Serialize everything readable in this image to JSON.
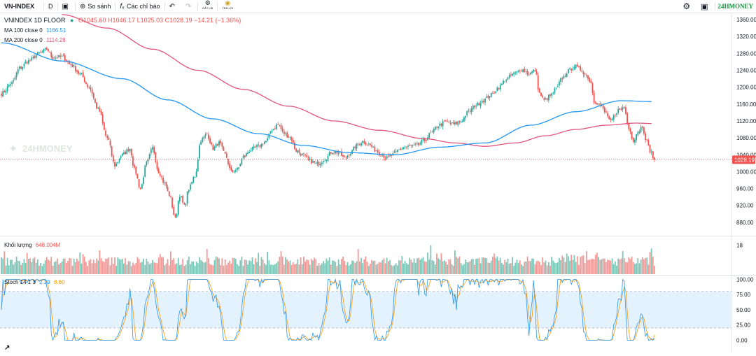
{
  "toolbar": {
    "symbol": "VN-INDEX",
    "interval": "D",
    "compare_label": "So sánh",
    "indicators_label": "Các chỉ báo",
    "set_alert_label": "ĐẶT LÃI",
    "trade_label": "TRẢ LỜI",
    "brand": "24HMONEY"
  },
  "watermark": "24HMONEY",
  "main_legend": {
    "title": "VNINDEX  1D  FLOOR",
    "ohlc": "O1045.60  H1046.17  L1025.03  C1028.19  −14.21 (−1.36%)",
    "ma100_label": "MA 100 close 0",
    "ma100_value": "1166.51",
    "ma200_label": "MA 200 close 0",
    "ma200_value": "1114.28"
  },
  "volume_legend": {
    "label": "Khối lượng",
    "value": "648.004M"
  },
  "stoch_legend": {
    "label": "Stoch 14 1 3",
    "k": "2.39",
    "d": "8.60"
  },
  "colors": {
    "up": "#26a69a",
    "down": "#ef5350",
    "ma100": "#2196f3",
    "ma200": "#e0557a",
    "stoch_k": "#2196f3",
    "stoch_d": "#ff9800",
    "band": "#e3f2fd",
    "last_price_bg": "#ef5350"
  },
  "chart_data": [
    {
      "type": "candlestick",
      "title": "VNINDEX 1D FLOOR",
      "ylim": [
        850,
        1375
      ],
      "y_ticks": [
        1360,
        1320,
        1280,
        1240,
        1200,
        1160,
        1120,
        1080,
        1040,
        1000,
        960,
        920,
        880
      ],
      "last_price": 1028.19,
      "anchors": [
        [
          0,
          1185
        ],
        [
          7,
          1210
        ],
        [
          12,
          1245
        ],
        [
          18,
          1262
        ],
        [
          25,
          1280
        ],
        [
          30,
          1290
        ],
        [
          34,
          1270
        ],
        [
          40,
          1272
        ],
        [
          46,
          1253
        ],
        [
          52,
          1232
        ],
        [
          58,
          1200
        ],
        [
          64,
          1148
        ],
        [
          70,
          1080
        ],
        [
          75,
          1015
        ],
        [
          80,
          1040
        ],
        [
          85,
          1055
        ],
        [
          88,
          1005
        ],
        [
          92,
          960
        ],
        [
          96,
          1020
        ],
        [
          100,
          1055
        ],
        [
          104,
          1000
        ],
        [
          108,
          972
        ],
        [
          111,
          945
        ],
        [
          115,
          890
        ],
        [
          118,
          945
        ],
        [
          121,
          918
        ],
        [
          124,
          960
        ],
        [
          128,
          990
        ],
        [
          132,
          1075
        ],
        [
          136,
          1088
        ],
        [
          140,
          1055
        ],
        [
          144,
          1068
        ],
        [
          148,
          1040
        ],
        [
          152,
          1000
        ],
        [
          156,
          1005
        ],
        [
          160,
          1035
        ],
        [
          165,
          1052
        ],
        [
          170,
          1060
        ],
        [
          175,
          1072
        ],
        [
          179,
          1100
        ],
        [
          183,
          1112
        ],
        [
          187,
          1090
        ],
        [
          191,
          1082
        ],
        [
          195,
          1050
        ],
        [
          199,
          1040
        ],
        [
          204,
          1025
        ],
        [
          209,
          1018
        ],
        [
          214,
          1030
        ],
        [
          219,
          1048
        ],
        [
          223,
          1045
        ],
        [
          227,
          1032
        ],
        [
          231,
          1045
        ],
        [
          235,
          1062
        ],
        [
          239,
          1072
        ],
        [
          243,
          1065
        ],
        [
          247,
          1052
        ],
        [
          251,
          1042
        ],
        [
          255,
          1032
        ],
        [
          259,
          1040
        ],
        [
          263,
          1052
        ],
        [
          267,
          1058
        ],
        [
          271,
          1060
        ],
        [
          275,
          1062
        ],
        [
          280,
          1075
        ],
        [
          284,
          1090
        ],
        [
          289,
          1110
        ],
        [
          294,
          1118
        ],
        [
          299,
          1112
        ],
        [
          304,
          1120
        ],
        [
          309,
          1142
        ],
        [
          314,
          1158
        ],
        [
          319,
          1170
        ],
        [
          324,
          1182
        ],
        [
          329,
          1200
        ],
        [
          334,
          1220
        ],
        [
          339,
          1232
        ],
        [
          344,
          1242
        ],
        [
          349,
          1232
        ],
        [
          353,
          1240
        ],
        [
          356,
          1185
        ],
        [
          359,
          1168
        ],
        [
          363,
          1180
        ],
        [
          367,
          1196
        ],
        [
          371,
          1222
        ],
        [
          375,
          1238
        ],
        [
          379,
          1250
        ],
        [
          383,
          1242
        ],
        [
          387,
          1228
        ],
        [
          390,
          1210
        ],
        [
          392,
          1168
        ],
        [
          396,
          1158
        ],
        [
          400,
          1138
        ],
        [
          403,
          1118
        ],
        [
          406,
          1132
        ],
        [
          409,
          1150
        ],
        [
          412,
          1150
        ],
        [
          415,
          1102
        ],
        [
          418,
          1075
        ],
        [
          421,
          1095
        ],
        [
          424,
          1108
        ],
        [
          426,
          1080
        ],
        [
          429,
          1050
        ],
        [
          432,
          1028
        ]
      ],
      "ma100": [
        [
          0,
          1305
        ],
        [
          40,
          1262
        ],
        [
          80,
          1220
        ],
        [
          110,
          1170
        ],
        [
          140,
          1125
        ],
        [
          170,
          1090
        ],
        [
          200,
          1062
        ],
        [
          230,
          1045
        ],
        [
          260,
          1040
        ],
        [
          290,
          1058
        ],
        [
          320,
          1068
        ],
        [
          350,
          1110
        ],
        [
          380,
          1142
        ],
        [
          410,
          1168
        ],
        [
          430,
          1166
        ]
      ],
      "ma200": [
        [
          40,
          1372
        ],
        [
          70,
          1340
        ],
        [
          100,
          1290
        ],
        [
          130,
          1240
        ],
        [
          160,
          1195
        ],
        [
          190,
          1155
        ],
        [
          220,
          1120
        ],
        [
          250,
          1098
        ],
        [
          280,
          1078
        ],
        [
          300,
          1068
        ],
        [
          320,
          1060
        ],
        [
          340,
          1068
        ],
        [
          360,
          1085
        ],
        [
          380,
          1100
        ],
        [
          400,
          1110
        ],
        [
          420,
          1115
        ],
        [
          430,
          1114
        ]
      ]
    },
    {
      "type": "bar",
      "title": "Khối lượng",
      "ylim": [
        0,
        23
      ],
      "y_ticks": [
        18
      ],
      "last_value": "648.004M"
    },
    {
      "type": "line",
      "title": "Stoch 14 1 3",
      "ylim": [
        -3,
        105
      ],
      "y_ticks": [
        100,
        75,
        50,
        25,
        0
      ],
      "band": [
        20,
        80
      ],
      "k_last": 2.39,
      "d_last": 8.6
    }
  ]
}
